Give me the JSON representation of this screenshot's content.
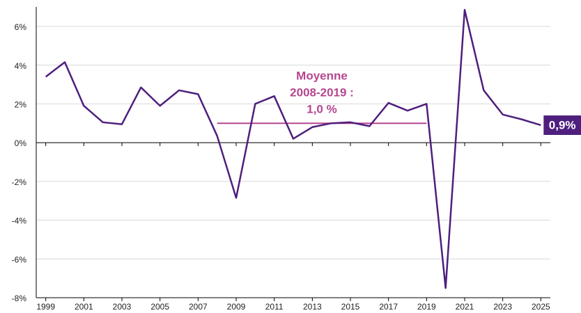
{
  "chart_data": {
    "type": "line",
    "x": [
      1999,
      2000,
      2001,
      2002,
      2003,
      2004,
      2005,
      2006,
      2007,
      2008,
      2009,
      2010,
      2011,
      2012,
      2013,
      2014,
      2015,
      2016,
      2017,
      2018,
      2019,
      2020,
      2021,
      2022,
      2023,
      2024,
      2025
    ],
    "series": [
      {
        "color": "#4e1f7d",
        "values": [
          3.4,
          4.15,
          1.9,
          1.05,
          0.95,
          2.85,
          1.9,
          2.7,
          2.5,
          0.35,
          -2.85,
          2.0,
          2.4,
          0.2,
          0.8,
          1.0,
          1.05,
          0.85,
          2.05,
          1.65,
          2.0,
          -7.5,
          6.85,
          2.7,
          1.45,
          1.2,
          0.9
        ],
        "value_labels": [
          null,
          null,
          null,
          null,
          null,
          null,
          null,
          null,
          null,
          null,
          null,
          null,
          null,
          null,
          null,
          null,
          null,
          null,
          null,
          null,
          null,
          null,
          null,
          null,
          null,
          null,
          "0,9%"
        ]
      }
    ],
    "xlim": [
      1998.5,
      2025.5
    ],
    "xticks": [
      1999,
      2001,
      2003,
      2005,
      2007,
      2009,
      2011,
      2013,
      2015,
      2017,
      2019,
      2021,
      2023,
      2025
    ],
    "ylim": [
      -8,
      7
    ],
    "yticks": [
      {
        "value": -8,
        "label": "-8%"
      },
      {
        "value": -6,
        "label": "-6%"
      },
      {
        "value": -4,
        "label": "-4%"
      },
      {
        "value": -2,
        "label": "-2%"
      },
      {
        "value": 0,
        "label": "0%"
      },
      {
        "value": 2,
        "label": "2%"
      },
      {
        "value": 4,
        "label": "4%"
      },
      {
        "value": 6,
        "label": "6%"
      }
    ],
    "grid": true,
    "mean_line": {
      "x": [
        2008,
        2019
      ],
      "value": 1.0,
      "color": "#b5478f",
      "label": [
        "Moyenne",
        "2008-2019 :",
        "1,0 %"
      ]
    }
  }
}
